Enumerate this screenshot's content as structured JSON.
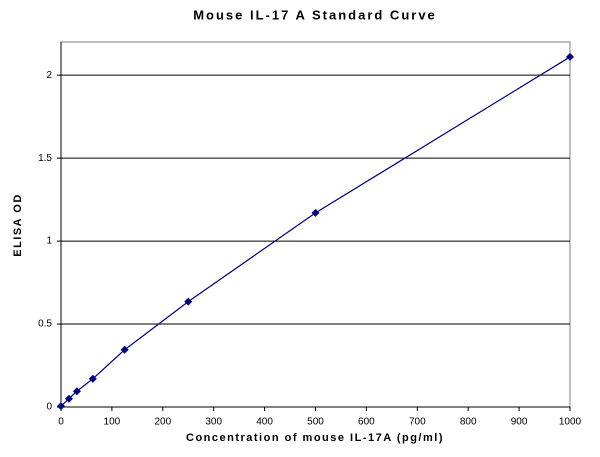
{
  "chart_data": {
    "type": "line",
    "title": "Mouse IL-17 A Standard Curve",
    "x_label": "Concentration of mouse IL-17A  (pg/ml)",
    "y_label": "ELISA OD",
    "x": [
      0,
      15.6,
      31.25,
      62.5,
      125,
      250,
      500,
      1000
    ],
    "series": [
      {
        "color": "#000080",
        "values": [
          0.005,
          0.05,
          0.095,
          0.17,
          0.345,
          0.635,
          1.17,
          2.11
        ]
      }
    ],
    "xlim": [
      0,
      1000
    ],
    "xticks": [
      0,
      100,
      200,
      300,
      400,
      500,
      600,
      700,
      800,
      900,
      1000
    ],
    "ylim": [
      0,
      2.2
    ],
    "yticks": [
      0,
      0.5,
      1,
      1.5,
      2
    ],
    "grid": true
  }
}
